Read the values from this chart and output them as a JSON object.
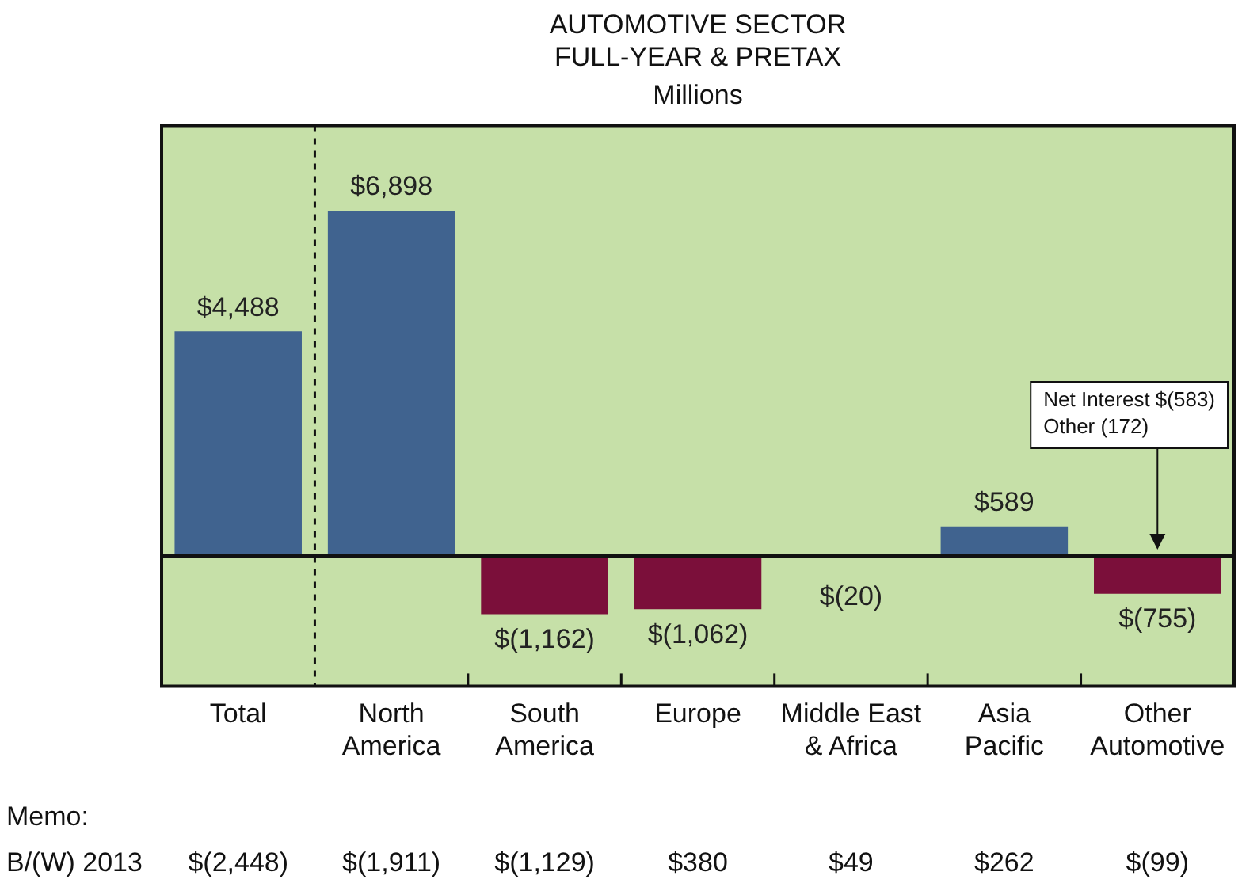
{
  "chart_data": {
    "type": "bar",
    "title": "AUTOMOTIVE SECTOR\nFULL-YEAR & PRETAX",
    "subtitle": "Millions",
    "categories": [
      "Total",
      "North\nAmerica",
      "South\nAmerica",
      "Europe",
      "Middle East\n& Africa",
      "Asia\nPacific",
      "Other\nAutomotive"
    ],
    "values": [
      4488,
      6898,
      -1162,
      -1062,
      -20,
      589,
      -755
    ],
    "colors": [
      "#40638f",
      "#40638f",
      "#7b0f3a",
      "#7b0f3a",
      "#7b0f3a",
      "#40638f",
      "#7b0f3a"
    ],
    "value_labels": [
      "$4,488",
      "$6,898",
      "$(1,162)",
      "$(1,062)",
      "$(20)",
      "$589",
      "$(755)"
    ],
    "ylim": [
      -2600,
      8600
    ],
    "tick_labels": "x",
    "grid": false,
    "legend": false,
    "annotations": [
      "Net Interest $(583)\nOther (172)",
      "Memo:",
      "B/(W) 2013",
      "$(2,448)",
      "$(1,911)",
      "$(1,129)",
      "$380",
      "$49",
      "$262",
      "$(99)"
    ]
  }
}
